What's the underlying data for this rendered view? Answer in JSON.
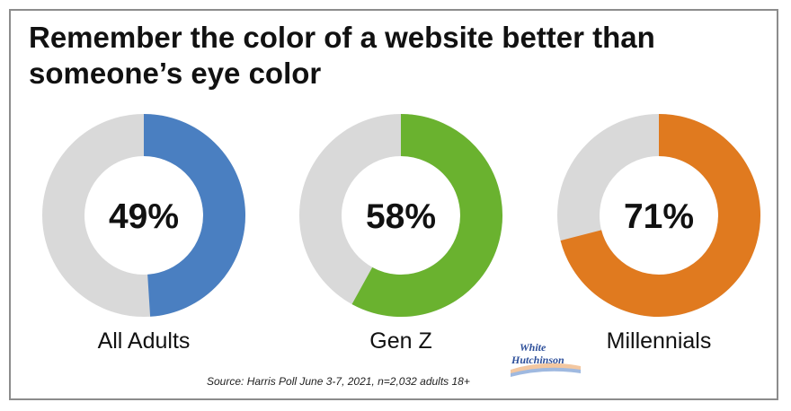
{
  "title_lines": [
    "Remember the color of a website better than",
    "someone’s eye color"
  ],
  "source": "Source: Harris Poll June 3-7, 2021, n=2,032 adults 18+",
  "logo": {
    "line1": "White",
    "line2": "Hutchinson"
  },
  "colors": {
    "track": "#d9d9d9",
    "all_adults": "#4a7fc1",
    "gen_z": "#6ab22f",
    "millennials": "#e07a1f"
  },
  "chart_data": {
    "type": "pie",
    "variant": "donut",
    "title": "Remember the color of a website better than someone’s eye color",
    "series": [
      {
        "name": "All Adults",
        "value": 49,
        "label": "49%",
        "color": "#4a7fc1"
      },
      {
        "name": "Gen Z",
        "value": 58,
        "label": "58%",
        "color": "#6ab22f"
      },
      {
        "name": "Millennials",
        "value": 71,
        "label": "71%",
        "color": "#e07a1f"
      }
    ],
    "total": 100
  }
}
